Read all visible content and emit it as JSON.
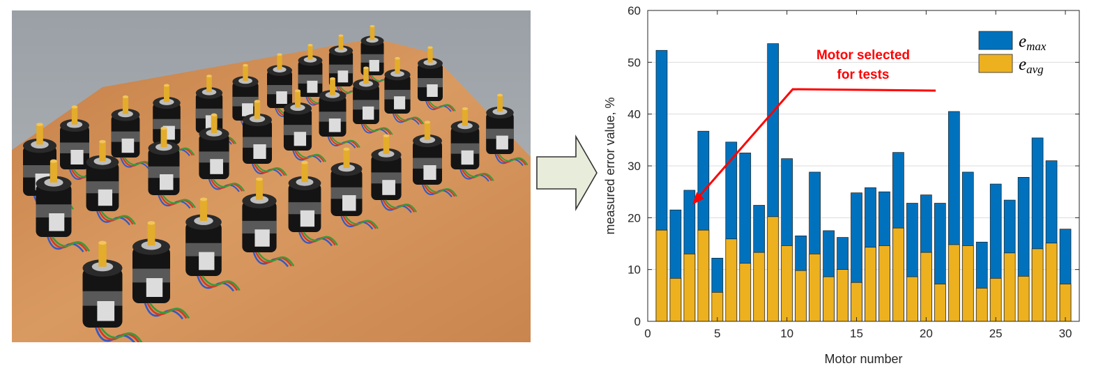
{
  "photo": {
    "subject_icon": "stepper-motor-icon"
  },
  "arrow_icon": "right-arrow-icon",
  "colors": {
    "emax": "#0072bd",
    "eavg": "#edb120",
    "annotation": "#ff0000",
    "arrow_fill": "#e8ecda"
  },
  "chart_data": {
    "type": "bar",
    "stacked_overlay": true,
    "xlabel": "Motor number",
    "ylabel": "measured error value, %",
    "xlim": [
      0,
      31
    ],
    "ylim": [
      0,
      60
    ],
    "xticks": [
      0,
      5,
      10,
      15,
      20,
      25,
      30
    ],
    "yticks": [
      0,
      10,
      20,
      30,
      40,
      50,
      60
    ],
    "grid": "y",
    "legend_position": "top-right",
    "legend": {
      "emax_base": "e",
      "emax_sub": "max",
      "eavg_base": "e",
      "eavg_sub": "avg"
    },
    "annotation": {
      "line1": "Motor selected",
      "line2": "for tests",
      "target_motor": 3
    },
    "x": [
      1,
      2,
      3,
      4,
      5,
      6,
      7,
      8,
      9,
      10,
      11,
      12,
      13,
      14,
      15,
      16,
      17,
      18,
      19,
      20,
      21,
      22,
      23,
      24,
      25,
      26,
      27,
      28,
      29,
      30
    ],
    "series": [
      {
        "name": "e_max",
        "values": [
          52.3,
          21.5,
          25.3,
          36.7,
          12.2,
          34.6,
          32.5,
          22.4,
          53.6,
          31.4,
          16.5,
          28.8,
          17.5,
          16.2,
          24.8,
          25.8,
          25.0,
          32.6,
          22.8,
          24.4,
          22.8,
          40.5,
          28.8,
          15.3,
          26.5,
          23.4,
          27.8,
          35.4,
          31.0,
          17.8
        ]
      },
      {
        "name": "e_avg",
        "values": [
          17.6,
          8.3,
          13.0,
          17.6,
          5.6,
          15.9,
          11.2,
          13.3,
          20.2,
          14.6,
          9.8,
          13.0,
          8.6,
          10.0,
          7.5,
          14.3,
          14.6,
          18.0,
          8.6,
          13.3,
          7.2,
          14.8,
          14.6,
          6.4,
          8.3,
          13.2,
          8.7,
          14.0,
          15.1,
          7.2
        ]
      }
    ]
  }
}
